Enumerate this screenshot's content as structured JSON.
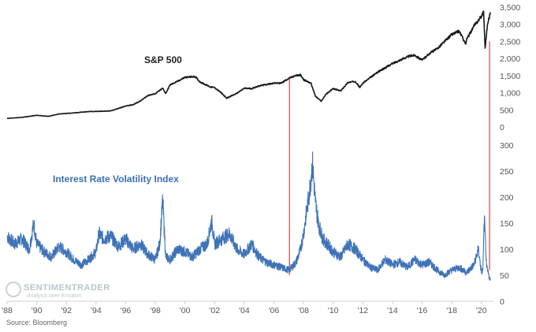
{
  "source": "Source: Bloomberg",
  "watermark": {
    "main": "SENTIMENTRADER",
    "sub": "Analysis over Emotion"
  },
  "colors": {
    "sp500": "#1a1a1a",
    "irv": "#3f73b8",
    "marker": "#d9534f",
    "axis": "#cfcfcf"
  },
  "chart_data": [
    {
      "type": "line",
      "title": "S&P 500",
      "yaxis_position": "right",
      "ylim": [
        0,
        3500
      ],
      "yticks": [
        0,
        500,
        1000,
        1500,
        2000,
        2500,
        3000,
        3500
      ],
      "ytick_labels": [
        "0",
        "500",
        "1,000",
        "1,500",
        "2,000",
        "2,500",
        "3,000",
        "3,500"
      ],
      "series": [
        {
          "x": [
            1988.0,
            1989.0,
            1990.0,
            1990.8,
            1991.5,
            1992.5,
            1993.5,
            1994.5,
            1995.0,
            1995.5,
            1996.0,
            1996.5,
            1997.0,
            1997.5,
            1998.0,
            1998.5,
            1998.7,
            1999.0,
            1999.5,
            2000.0,
            2000.7,
            2001.0,
            2001.7,
            2002.0,
            2002.5,
            2002.8,
            2003.0,
            2003.5,
            2004.0,
            2004.5,
            2005.0,
            2006.0,
            2006.5,
            2007.0,
            2007.5,
            2007.8,
            2008.0,
            2008.5,
            2008.8,
            2009.2,
            2009.5,
            2010.0,
            2010.5,
            2011.0,
            2011.5,
            2011.8,
            2012.0,
            2013.0,
            2014.0,
            2015.0,
            2015.5,
            2016.0,
            2016.5,
            2017.0,
            2018.0,
            2018.5,
            2018.95,
            2019.0,
            2019.5,
            2020.0,
            2020.15,
            2020.25,
            2020.4,
            2020.6
          ],
          "y": [
            250,
            280,
            340,
            310,
            380,
            410,
            450,
            460,
            470,
            540,
            610,
            650,
            760,
            920,
            970,
            1130,
            980,
            1230,
            1330,
            1450,
            1470,
            1320,
            1170,
            1150,
            980,
            840,
            880,
            980,
            1130,
            1120,
            1200,
            1280,
            1280,
            1420,
            1500,
            1520,
            1380,
            1280,
            900,
            750,
            950,
            1120,
            1050,
            1300,
            1330,
            1150,
            1280,
            1600,
            1850,
            2050,
            2100,
            1950,
            2150,
            2280,
            2700,
            2800,
            2420,
            2550,
            2950,
            3230,
            3380,
            2300,
            2950,
            3350
          ]
        }
      ]
    },
    {
      "type": "line",
      "title": "Interest Rate Volatility Index",
      "xlim": [
        1988,
        2020.6
      ],
      "yaxis_position": "right",
      "ylim": [
        0,
        300
      ],
      "yticks": [
        0,
        50,
        100,
        150,
        200,
        250,
        300
      ],
      "ytick_labels": [
        "0",
        "50",
        "100",
        "150",
        "200",
        "250",
        "300"
      ],
      "xticks": [
        1988,
        1990,
        1992,
        1994,
        1996,
        1998,
        2000,
        2002,
        2004,
        2006,
        2008,
        2010,
        2012,
        2014,
        2016,
        2018,
        2020
      ],
      "xtick_labels": [
        "'88",
        "'90",
        "'92",
        "'94",
        "'96",
        "'98",
        "'00",
        "'02",
        "'04",
        "'06",
        "'08",
        "'10",
        "'12",
        "'14",
        "'16",
        "'18",
        "'20"
      ],
      "series": [
        {
          "x": [
            1988.0,
            1988.5,
            1989.0,
            1989.5,
            1989.8,
            1990.0,
            1990.5,
            1991.0,
            1991.5,
            1992.0,
            1992.5,
            1993.0,
            1993.5,
            1994.0,
            1994.2,
            1994.5,
            1995.0,
            1995.5,
            1996.0,
            1996.5,
            1997.0,
            1997.5,
            1998.0,
            1998.3,
            1998.5,
            1998.7,
            1999.0,
            1999.5,
            2000.0,
            2000.5,
            2001.0,
            2001.5,
            2001.8,
            2002.0,
            2002.5,
            2003.0,
            2003.5,
            2004.0,
            2004.5,
            2005.0,
            2005.5,
            2006.0,
            2006.5,
            2007.0,
            2007.2,
            2007.5,
            2007.8,
            2008.0,
            2008.2,
            2008.4,
            2008.6,
            2008.8,
            2009.0,
            2009.3,
            2009.6,
            2010.0,
            2010.5,
            2011.0,
            2011.5,
            2012.0,
            2012.5,
            2013.0,
            2013.5,
            2014.0,
            2014.5,
            2015.0,
            2015.5,
            2016.0,
            2016.5,
            2017.0,
            2017.5,
            2018.0,
            2018.5,
            2019.0,
            2019.5,
            2019.8,
            2020.0,
            2020.1,
            2020.2,
            2020.35,
            2020.6
          ],
          "y": [
            125,
            110,
            120,
            100,
            150,
            110,
            95,
            85,
            105,
            95,
            80,
            70,
            80,
            95,
            130,
            120,
            125,
            105,
            120,
            100,
            110,
            90,
            80,
            110,
            195,
            85,
            80,
            100,
            95,
            85,
            100,
            110,
            155,
            110,
            120,
            130,
            100,
            90,
            110,
            85,
            75,
            70,
            65,
            60,
            65,
            75,
            100,
            130,
            170,
            210,
            265,
            190,
            150,
            120,
            110,
            95,
            85,
            110,
            100,
            80,
            65,
            60,
            80,
            70,
            75,
            65,
            80,
            70,
            75,
            60,
            50,
            60,
            65,
            55,
            70,
            100,
            55,
            60,
            160,
            65,
            40
          ]
        }
      ]
    }
  ]
}
